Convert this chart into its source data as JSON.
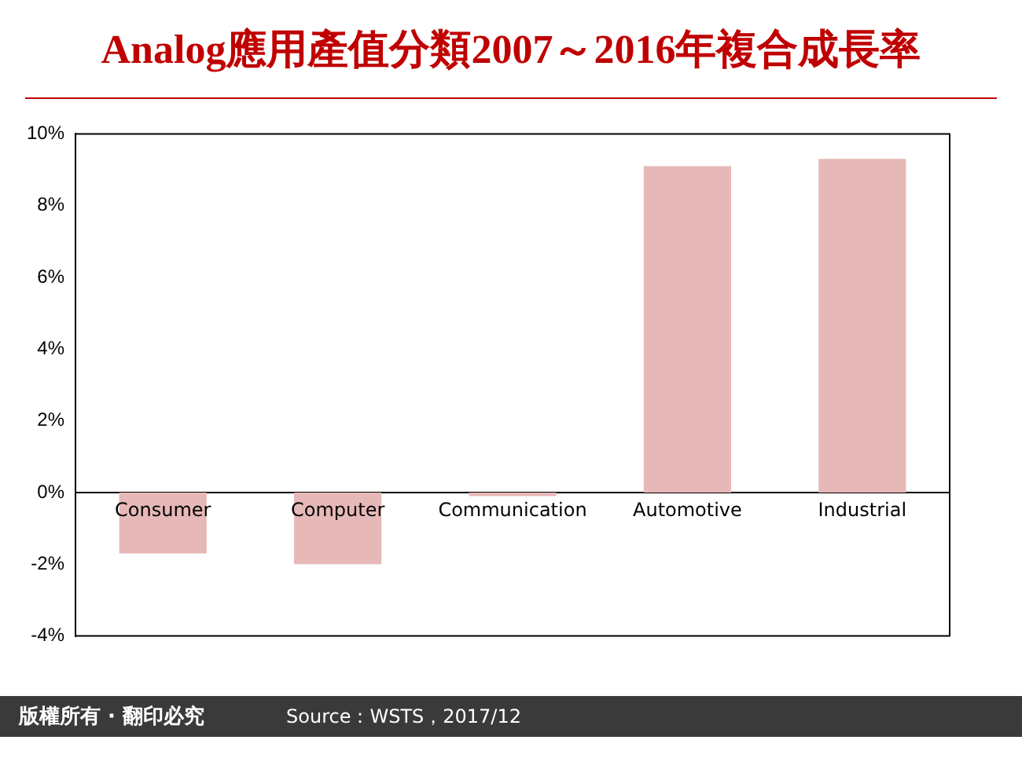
{
  "chart_data": {
    "type": "bar",
    "title": "Analog應用產值分類2007～2016年複合成長率",
    "categories": [
      "Consumer",
      "Computer",
      "Communication",
      "Automotive",
      "Industrial"
    ],
    "values": [
      -1.7,
      -2.0,
      -0.1,
      9.1,
      9.3
    ],
    "color": "#e6b8b7",
    "ylim": [
      -4,
      10
    ],
    "yticks": [
      {
        "value": -4,
        "label": "-4%"
      },
      {
        "value": -2,
        "label": "-2%"
      },
      {
        "value": 0,
        "label": "0%"
      },
      {
        "value": 2,
        "label": "2%"
      },
      {
        "value": 4,
        "label": "4%"
      },
      {
        "value": 6,
        "label": "6%"
      },
      {
        "value": 8,
        "label": "8%"
      },
      {
        "value": 10,
        "label": "10%"
      }
    ],
    "grid": false,
    "annotations": [
      "版權所有 · 翻印必究",
      "Source：WSTS，2017/12"
    ]
  }
}
